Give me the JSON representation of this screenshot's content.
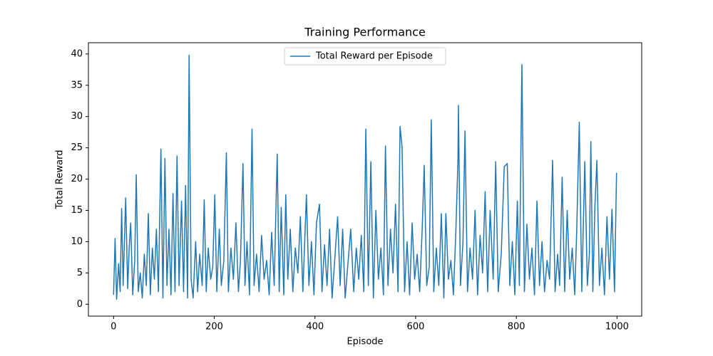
{
  "chart_data": {
    "type": "line",
    "title": "Training Performance",
    "xlabel": "Episode",
    "ylabel": "Total Reward",
    "legend": "upper center",
    "grid": false,
    "xlim": [
      -50,
      1049
    ],
    "ylim": [
      -1.9,
      41.8
    ],
    "xticks": [
      0,
      200,
      400,
      600,
      800,
      1000
    ],
    "yticks": [
      0,
      5,
      10,
      15,
      20,
      25,
      30,
      35,
      40
    ],
    "x": [
      0,
      3,
      6,
      10,
      13,
      16,
      19,
      24,
      28,
      31,
      34,
      38,
      42,
      45,
      49,
      53,
      57,
      61,
      65,
      69,
      73,
      77,
      81,
      85,
      89,
      94,
      98,
      102,
      106,
      110,
      114,
      118,
      122,
      126,
      130,
      135,
      139,
      143,
      147,
      150,
      154,
      158,
      163,
      167,
      171,
      176,
      180,
      184,
      188,
      193,
      197,
      201,
      205,
      210,
      214,
      219,
      224,
      228,
      233,
      238,
      243,
      248,
      252,
      257,
      261,
      265,
      270,
      275,
      279,
      284,
      289,
      294,
      299,
      304,
      309,
      314,
      319,
      325,
      329,
      333,
      338,
      342,
      346,
      351,
      356,
      361,
      366,
      371,
      376,
      383,
      388,
      393,
      398,
      403,
      409,
      414,
      419,
      424,
      429,
      434,
      440,
      445,
      450,
      455,
      460,
      466,
      471,
      477,
      482,
      487,
      492,
      497,
      501,
      506,
      511,
      516,
      521,
      526,
      531,
      536,
      540,
      545,
      550,
      555,
      560,
      565,
      569,
      573,
      578,
      583,
      588,
      593,
      598,
      603,
      608,
      613,
      617,
      622,
      627,
      631,
      636,
      641,
      646,
      651,
      656,
      660,
      665,
      670,
      675,
      680,
      684,
      685,
      689,
      694,
      698,
      703,
      708,
      713,
      718,
      723,
      728,
      733,
      738,
      743,
      748,
      754,
      759,
      764,
      770,
      776,
      782,
      787,
      792,
      797,
      802,
      806,
      811,
      816,
      821,
      826,
      831,
      836,
      841,
      846,
      851,
      856,
      861,
      866,
      872,
      877,
      882,
      886,
      891,
      896,
      901,
      906,
      911,
      916,
      920,
      925,
      930,
      936,
      941,
      945,
      948,
      952,
      956,
      960,
      965,
      970,
      975,
      980,
      985,
      990,
      995,
      999
    ],
    "series": [
      {
        "name": "Total Reward per Episode",
        "color": "#1f77b4",
        "values": [
          1.5,
          10.5,
          0.8,
          6.5,
          2,
          15.3,
          3,
          17,
          2.5,
          9,
          13,
          1.5,
          7,
          20.7,
          2,
          5,
          1,
          8,
          3,
          14.5,
          1.5,
          9,
          4,
          12,
          2,
          24.8,
          1,
          23.3,
          3,
          12,
          1.5,
          17.7,
          2,
          23.7,
          3,
          16.5,
          2,
          19,
          1,
          39.8,
          4,
          1,
          10,
          2,
          8,
          3,
          16.7,
          2,
          9,
          4,
          6,
          17.5,
          2,
          12,
          3,
          7,
          24.2,
          2,
          9,
          4,
          13,
          2,
          7,
          22.5,
          3,
          10,
          1.5,
          28,
          3,
          8,
          2,
          11,
          4,
          7,
          1.5,
          11.5,
          3,
          24,
          2,
          15.5,
          1.5,
          17.5,
          4,
          12,
          2,
          9,
          5,
          14,
          2,
          17.5,
          3,
          10,
          1.5,
          13,
          16,
          2,
          9.5,
          3,
          12,
          1,
          8,
          14,
          3,
          12,
          1,
          7,
          12,
          2,
          9,
          4,
          11,
          2,
          28,
          3,
          22.8,
          1,
          15,
          4,
          9,
          1.5,
          25.3,
          3,
          12,
          5,
          16,
          2,
          28.4,
          25.2,
          2,
          10,
          1.5,
          13,
          4,
          8,
          2,
          12,
          22.2,
          3,
          6,
          29.5,
          2,
          9,
          3,
          14.5,
          1,
          14.5,
          4,
          7,
          1.5,
          12,
          23,
          31.8,
          3,
          10,
          27.7,
          2,
          9,
          4,
          15,
          1.5,
          11,
          5,
          18,
          2,
          15,
          4,
          22.8,
          2,
          8,
          22,
          22.5,
          3,
          10,
          1.5,
          16.5,
          3,
          38.3,
          2,
          12.8,
          4,
          9,
          1.5,
          16.5,
          3,
          10,
          2,
          7,
          4,
          23,
          2,
          8,
          3,
          20.3,
          2,
          15,
          4,
          9,
          1.5,
          12,
          29.1,
          2,
          22.8,
          3,
          8,
          26,
          2,
          15.5,
          23,
          3,
          9,
          1.5,
          14,
          4,
          15.2,
          2,
          21
        ]
      }
    ]
  }
}
